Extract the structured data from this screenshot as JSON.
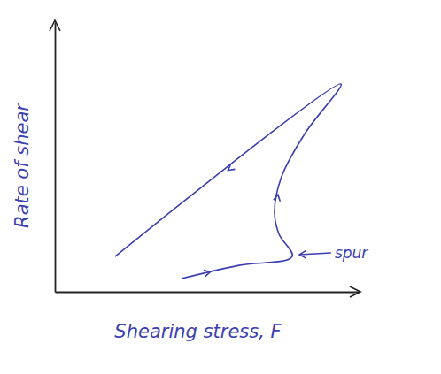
{
  "chart_data": {
    "type": "line",
    "x_label": "Shearing stress, F",
    "y_label": "Rate of shear",
    "x": [
      4.17,
      6.06,
      7.81,
      7.38,
      7.23,
      7.46,
      8.25,
      9.42,
      1.98
    ],
    "values": [
      0.49,
      0.98,
      1.31,
      2.13,
      2.95,
      4.26,
      5.9,
      7.7,
      1.31
    ],
    "color": "#3b3fb0",
    "xlim": [
      0,
      10
    ],
    "ylim": [
      0,
      10
    ],
    "tick_labels": false,
    "annotations": [
      {
        "text": "spur",
        "x": 7.81,
        "y": 1.31
      }
    ]
  }
}
